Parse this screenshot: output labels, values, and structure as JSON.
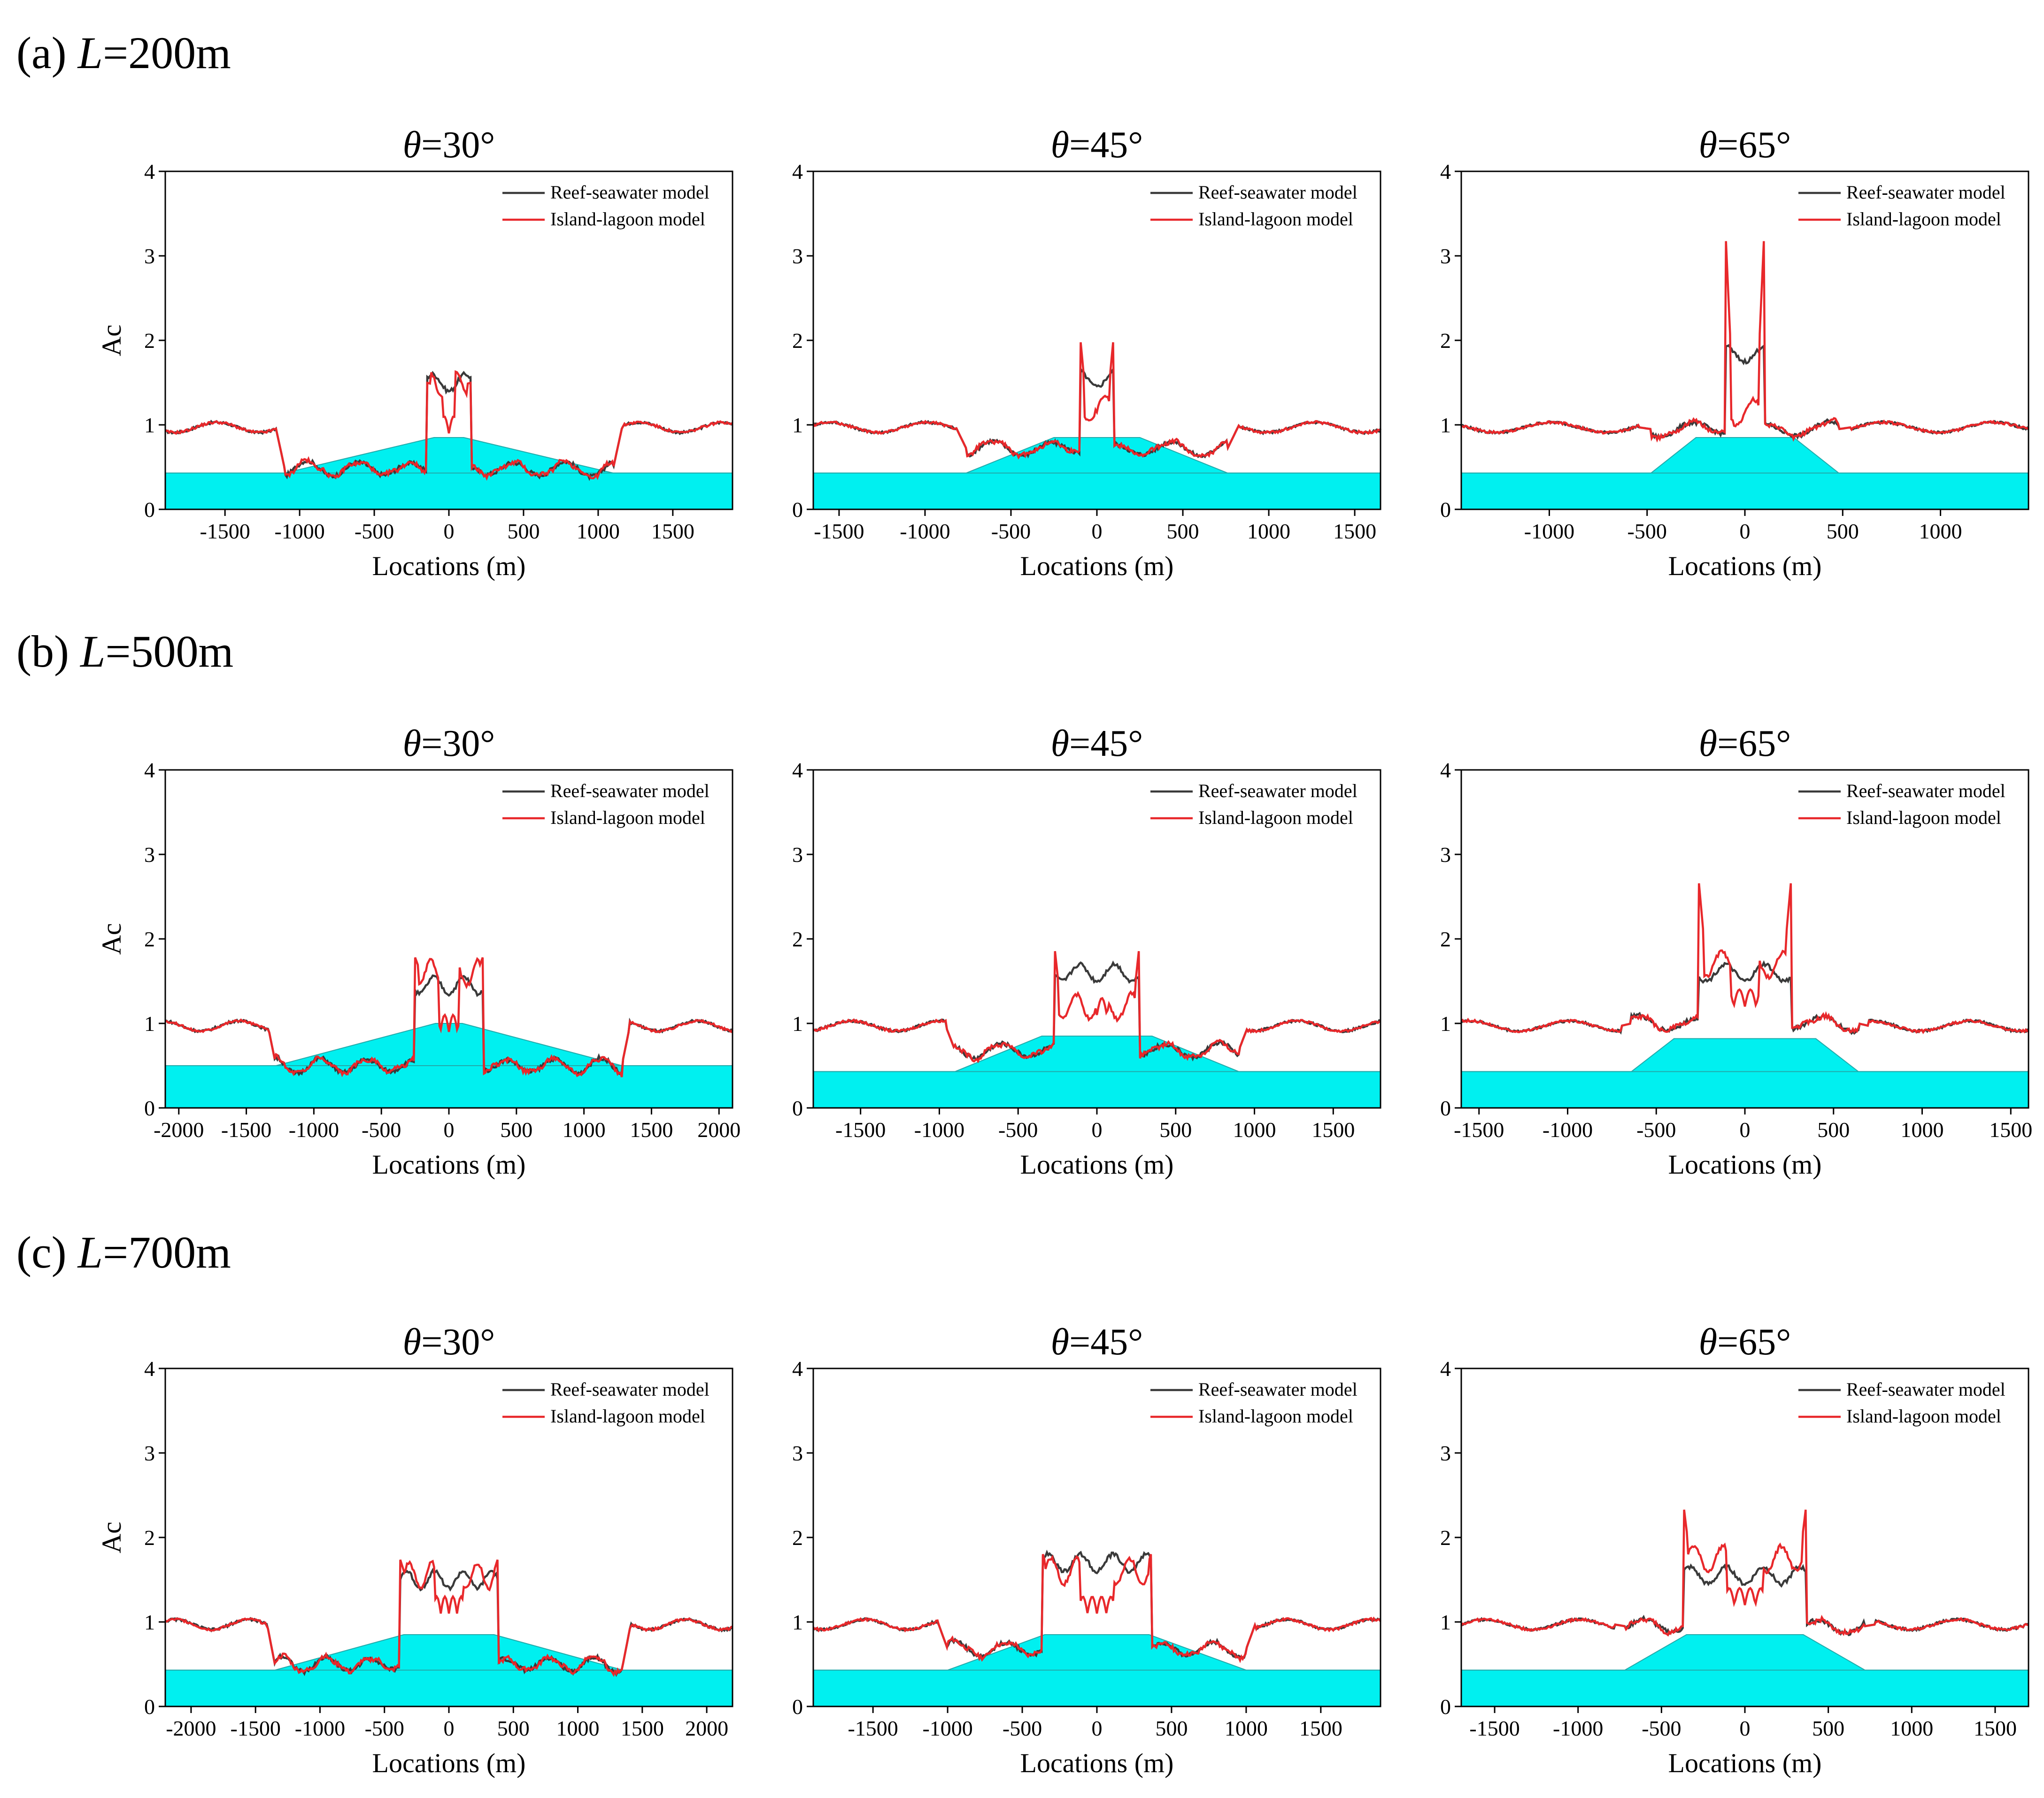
{
  "figure": {
    "row_labels": [
      {
        "prefix": "(a) ",
        "var": "L",
        "suffix": "=200m"
      },
      {
        "prefix": "(b) ",
        "var": "L",
        "suffix": "=500m"
      },
      {
        "prefix": "(c) ",
        "var": "L",
        "suffix": "=700m"
      }
    ],
    "colors": {
      "reef": "#3a3a3a",
      "island": "#e8282b",
      "fill": "#00f0f0",
      "fill_edge": "#22aaaa"
    }
  },
  "chart_data": [
    {
      "type": "line",
      "row": 0,
      "col": 0,
      "title_var": "θ",
      "title_rest": "=30°",
      "xlabel": "Locations (m)",
      "ylabel": "Ac",
      "xlim": [
        -1900,
        1900
      ],
      "ylim": [
        0,
        4
      ],
      "xticks": [
        -1500,
        -1000,
        -500,
        0,
        500,
        1000,
        1500
      ],
      "yticks": [
        0,
        1,
        2,
        3,
        4
      ],
      "legend": {
        "position": "top-right",
        "entries": [
          "Reef-seawater model",
          "Island-lagoon model"
        ]
      },
      "reef_half_width": 1100,
      "reef_top": 0.85,
      "reef_top_half": 100,
      "base_level": 0.43,
      "inner_half": 150,
      "plateau_reef": 1.5,
      "plateau_island": 1.48,
      "center_dip": 0.9,
      "edge_peak": 1.5,
      "slope_low": 0.48
    },
    {
      "type": "line",
      "row": 0,
      "col": 1,
      "title_var": "θ",
      "title_rest": "=45°",
      "xlabel": "Locations (m)",
      "ylabel": "",
      "xlim": [
        -1650,
        1650
      ],
      "ylim": [
        0,
        4
      ],
      "xticks": [
        -1500,
        -1000,
        -500,
        0,
        500,
        1000,
        1500
      ],
      "yticks": [
        0,
        1,
        2,
        3,
        4
      ],
      "legend": {
        "position": "top-right",
        "entries": [
          "Reef-seawater model",
          "Island-lagoon model"
        ]
      },
      "reef_half_width": 760,
      "reef_top": 0.85,
      "reef_top_half": 250,
      "base_level": 0.43,
      "inner_half": 100,
      "plateau_reef": 1.55,
      "plateau_island": 1.2,
      "center_dip": 1.15,
      "edge_peak": 2.1,
      "slope_low": 0.72
    },
    {
      "type": "line",
      "row": 0,
      "col": 2,
      "title_var": "θ",
      "title_rest": "=65°",
      "xlabel": "Locations (m)",
      "ylabel": "",
      "xlim": [
        -1450,
        1450
      ],
      "ylim": [
        0,
        4
      ],
      "xticks": [
        -1000,
        -500,
        0,
        500,
        1000
      ],
      "yticks": [
        0,
        1,
        2,
        3,
        4
      ],
      "legend": {
        "position": "top-right",
        "entries": [
          "Reef-seawater model",
          "Island-lagoon model"
        ]
      },
      "reef_half_width": 480,
      "reef_top": 0.85,
      "reef_top_half": 250,
      "base_level": 0.43,
      "inner_half": 100,
      "plateau_reef": 1.85,
      "plateau_island": 1.15,
      "center_dip": 1.15,
      "edge_peak": 3.35,
      "slope_low": 0.95
    },
    {
      "type": "line",
      "row": 1,
      "col": 0,
      "title_var": "θ",
      "title_rest": "=30°",
      "xlabel": "Locations (m)",
      "ylabel": "Ac",
      "xlim": [
        -2100,
        2100
      ],
      "ylim": [
        0,
        4
      ],
      "xticks": [
        -2000,
        -1500,
        -1000,
        -500,
        0,
        500,
        1000,
        1500,
        2000
      ],
      "yticks": [
        0,
        1,
        2,
        3,
        4
      ],
      "legend": {
        "position": "top-right",
        "entries": [
          "Reef-seawater model",
          "Island-lagoon model"
        ]
      },
      "reef_half_width": 1280,
      "reef_top": 1.0,
      "reef_top_half": 100,
      "base_level": 0.5,
      "inner_half": 250,
      "plateau_reef": 1.45,
      "plateau_island": 1.6,
      "center_dip": 0.9,
      "edge_peak": 1.78,
      "slope_low": 0.5
    },
    {
      "type": "line",
      "row": 1,
      "col": 1,
      "title_var": "θ",
      "title_rest": "=45°",
      "xlabel": "Locations (m)",
      "ylabel": "",
      "xlim": [
        -1800,
        1800
      ],
      "ylim": [
        0,
        4
      ],
      "xticks": [
        -1500,
        -1000,
        -500,
        0,
        500,
        1000,
        1500
      ],
      "yticks": [
        0,
        1,
        2,
        3,
        4
      ],
      "legend": {
        "position": "top-right",
        "entries": [
          "Reef-seawater model",
          "Island-lagoon model"
        ]
      },
      "reef_half_width": 900,
      "reef_top": 0.85,
      "reef_top_half": 350,
      "base_level": 0.43,
      "inner_half": 270,
      "plateau_reef": 1.6,
      "plateau_island": 1.2,
      "center_dip": 1.1,
      "edge_peak": 1.93,
      "slope_low": 0.68
    },
    {
      "type": "line",
      "row": 1,
      "col": 2,
      "title_var": "θ",
      "title_rest": "=65°",
      "xlabel": "Locations (m)",
      "ylabel": "",
      "xlim": [
        -1600,
        1600
      ],
      "ylim": [
        0,
        4
      ],
      "xticks": [
        -1500,
        -1000,
        -500,
        0,
        500,
        1000,
        1500
      ],
      "yticks": [
        0,
        1,
        2,
        3,
        4
      ],
      "legend": {
        "position": "top-right",
        "entries": [
          "Reef-seawater model",
          "Island-lagoon model"
        ]
      },
      "reef_half_width": 640,
      "reef_top": 0.82,
      "reef_top_half": 400,
      "base_level": 0.43,
      "inner_half": 260,
      "plateau_reef": 1.6,
      "plateau_island": 1.7,
      "center_dip": 1.2,
      "edge_peak": 2.68,
      "slope_low": 1.0
    },
    {
      "type": "line",
      "row": 2,
      "col": 0,
      "title_var": "θ",
      "title_rest": "=30°",
      "xlabel": "Locations (m)",
      "ylabel": "Ac",
      "xlim": [
        -2200,
        2200
      ],
      "ylim": [
        0,
        4
      ],
      "xticks": [
        -2000,
        -1500,
        -1000,
        -500,
        0,
        500,
        1000,
        1500,
        2000
      ],
      "yticks": [
        0,
        1,
        2,
        3,
        4
      ],
      "legend": {
        "position": "top-right",
        "entries": [
          "Reef-seawater model",
          "Island-lagoon model"
        ]
      },
      "reef_half_width": 1350,
      "reef_top": 0.85,
      "reef_top_half": 350,
      "base_level": 0.43,
      "inner_half": 380,
      "plateau_reef": 1.5,
      "plateau_island": 1.55,
      "center_dip": 1.1,
      "edge_peak": 1.75,
      "slope_low": 0.5
    },
    {
      "type": "line",
      "row": 2,
      "col": 1,
      "title_var": "θ",
      "title_rest": "=45°",
      "xlabel": "Locations (m)",
      "ylabel": "",
      "xlim": [
        -1900,
        1900
      ],
      "ylim": [
        0,
        4
      ],
      "xticks": [
        -1500,
        -1000,
        -500,
        0,
        500,
        1000,
        1500
      ],
      "yticks": [
        0,
        1,
        2,
        3,
        4
      ],
      "legend": {
        "position": "top-right",
        "entries": [
          "Reef-seawater model",
          "Island-lagoon model"
        ]
      },
      "reef_half_width": 1000,
      "reef_top": 0.85,
      "reef_top_half": 350,
      "base_level": 0.43,
      "inner_half": 370,
      "plateau_reef": 1.7,
      "plateau_island": 1.6,
      "center_dip": 1.1,
      "edge_peak": 1.85,
      "slope_low": 0.68
    },
    {
      "type": "line",
      "row": 2,
      "col": 2,
      "title_var": "θ",
      "title_rest": "=65°",
      "xlabel": "Locations (m)",
      "ylabel": "",
      "xlim": [
        -1700,
        1700
      ],
      "ylim": [
        0,
        4
      ],
      "xticks": [
        -1500,
        -1000,
        -500,
        0,
        500,
        1000,
        1500
      ],
      "yticks": [
        0,
        1,
        2,
        3,
        4
      ],
      "legend": {
        "position": "top-right",
        "entries": [
          "Reef-seawater model",
          "Island-lagoon model"
        ]
      },
      "reef_half_width": 720,
      "reef_top": 0.85,
      "reef_top_half": 350,
      "base_level": 0.43,
      "inner_half": 370,
      "plateau_reef": 1.55,
      "plateau_island": 1.75,
      "center_dip": 1.2,
      "edge_peak": 2.42,
      "slope_low": 0.95
    }
  ]
}
